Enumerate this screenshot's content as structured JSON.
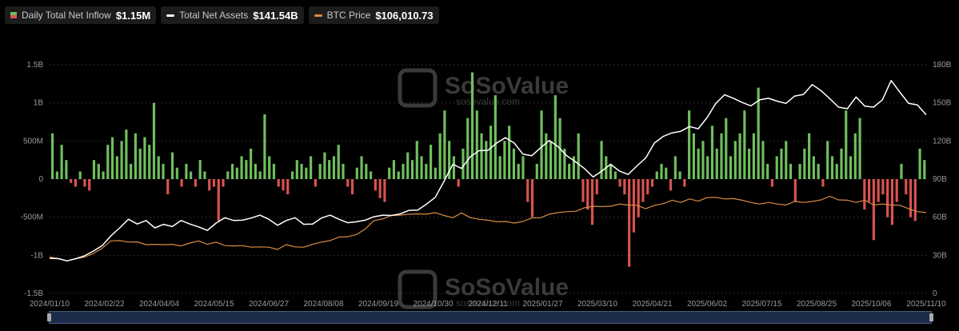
{
  "legend": {
    "inflow_label": "Daily Total Net Inflow",
    "inflow_value": "$1.15M",
    "assets_label": "Total Net Assets",
    "assets_value": "$141.54B",
    "btc_label": "BTC Price",
    "btc_value": "$106,010.73"
  },
  "watermark": {
    "brand": "SoSoValue",
    "url": "sosovalue.com"
  },
  "colors": {
    "inflow_pos": "#6fbf5e",
    "inflow_neg": "#d9534f",
    "assets": "#ffffff",
    "btc": "#d98c3f",
    "grid": "#2a2a2a"
  },
  "chart_data": {
    "type": "bar",
    "x_tick_labels": [
      "2024/01/10",
      "2024/02/22",
      "2024/04/04",
      "2024/05/15",
      "2024/06/27",
      "2024/08/08",
      "2024/09/19",
      "2024/10/30",
      "2024/12/11",
      "2025/01/27",
      "2025/03/10",
      "2025/04/21",
      "2025/06/02",
      "2025/07/15",
      "2025/08/25",
      "2025/10/06",
      "2025/11/10"
    ],
    "y_left_ticks": [
      "1.5B",
      "1B",
      "500M",
      "0",
      "-500M",
      "-1B",
      "-1.5B"
    ],
    "y_right_ticks": [
      "180B",
      "150B",
      "120B",
      "90B",
      "60B",
      "30B",
      "0"
    ],
    "ylim_left": [
      -1.5,
      1.5
    ],
    "ylim_right": [
      0,
      180
    ],
    "grid": true,
    "series": [
      {
        "name": "Daily Total Net Inflow",
        "axis": "left",
        "unit": "B USD",
        "values": [
          0.6,
          0.1,
          0.45,
          0.25,
          -0.05,
          -0.1,
          0.1,
          -0.1,
          -0.15,
          0.25,
          0.2,
          0.1,
          0.45,
          0.55,
          0.3,
          0.5,
          0.65,
          0.2,
          0.6,
          0.4,
          0.55,
          0.45,
          1.0,
          0.3,
          0.2,
          -0.2,
          0.35,
          0.15,
          -0.1,
          0.2,
          0.1,
          -0.1,
          0.25,
          0.1,
          -0.15,
          -0.1,
          -0.55,
          -0.1,
          0.1,
          0.2,
          0.15,
          0.3,
          0.25,
          0.4,
          0.2,
          0.1,
          0.85,
          0.3,
          0.2,
          -0.1,
          -0.15,
          -0.2,
          0.1,
          0.25,
          0.2,
          0.15,
          0.3,
          -0.1,
          0.2,
          0.35,
          0.25,
          0.3,
          0.45,
          0.2,
          -0.1,
          -0.2,
          0.15,
          0.3,
          0.2,
          0.1,
          -0.15,
          -0.25,
          -0.3,
          0.15,
          0.25,
          0.1,
          0.2,
          0.35,
          0.25,
          0.5,
          0.3,
          0.2,
          0.45,
          0.15,
          0.6,
          0.9,
          0.5,
          0.3,
          -0.1,
          0.4,
          0.8,
          1.4,
          0.9,
          0.6,
          0.5,
          0.7,
          1.1,
          0.3,
          0.5,
          0.7,
          0.4,
          0.2,
          0.3,
          -0.3,
          -0.5,
          0.2,
          0.9,
          0.6,
          0.5,
          1.1,
          0.8,
          0.4,
          0.2,
          0.3,
          0.6,
          -0.3,
          -0.4,
          -0.6,
          -0.2,
          0.5,
          0.3,
          0.2,
          0.1,
          -0.1,
          -0.2,
          -1.15,
          -0.7,
          -0.5,
          -0.3,
          -0.2,
          -0.1,
          0.1,
          0.2,
          0.15,
          -0.15,
          0.3,
          0.1,
          -0.1,
          0.9,
          0.6,
          0.4,
          0.5,
          0.3,
          0.7,
          0.4,
          0.6,
          0.8,
          0.3,
          0.5,
          0.6,
          0.9,
          0.4,
          0.6,
          1.2,
          0.5,
          0.2,
          -0.1,
          0.3,
          0.4,
          0.5,
          0.2,
          -0.3,
          0.2,
          0.4,
          0.6,
          0.3,
          0.2,
          -0.1,
          0.5,
          0.3,
          0.2,
          0.4,
          0.9,
          0.3,
          0.6,
          0.8,
          -0.4,
          -0.3,
          -0.8,
          -0.3,
          -0.2,
          -0.5,
          -0.6,
          -0.3,
          0.2,
          -0.2,
          -0.5,
          -0.55,
          0.4,
          0.25
        ],
        "color": "#6fbf5e"
      },
      {
        "name": "Total Net Assets",
        "axis": "right",
        "unit": "B USD",
        "values": [
          28,
          27,
          26,
          27,
          30,
          33,
          38,
          45,
          52,
          58,
          55,
          57,
          52,
          54,
          53,
          57,
          55,
          52,
          50,
          55,
          60,
          57,
          58,
          59,
          62,
          58,
          54,
          57,
          60,
          54,
          55,
          59,
          62,
          58,
          56,
          56,
          58,
          60,
          62,
          61,
          63,
          65,
          66,
          70,
          76,
          88,
          102,
          98,
          108,
          112,
          113,
          118,
          123,
          118,
          110,
          108,
          115,
          120,
          116,
          108,
          104,
          98,
          92,
          96,
          102,
          96,
          94,
          100,
          107,
          118,
          124,
          126,
          128,
          131,
          130,
          138,
          150,
          156,
          154,
          150,
          148,
          152,
          154,
          151,
          150,
          155,
          157,
          164,
          160,
          153,
          147,
          145,
          155,
          147,
          147,
          152,
          168,
          158,
          150,
          148,
          141
        ],
        "color": "#ffffff"
      },
      {
        "name": "BTC Price",
        "axis": "right",
        "unit": "B-scale",
        "values": [
          29,
          27,
          26,
          27,
          29,
          31,
          36,
          41,
          42,
          40,
          41,
          38,
          39,
          38,
          39,
          37,
          40,
          41,
          39,
          40,
          38,
          37,
          38,
          36,
          37,
          36,
          35,
          38,
          37,
          36,
          39,
          40,
          42,
          44,
          45,
          46,
          51,
          57,
          59,
          61,
          62,
          62,
          63,
          62,
          64,
          61,
          60,
          63,
          60,
          58,
          58,
          56,
          57,
          55,
          57,
          59,
          60,
          62,
          64,
          64,
          65,
          67,
          69,
          68,
          69,
          70,
          70,
          69,
          67,
          69,
          71,
          73,
          72,
          74,
          73,
          75,
          76,
          74,
          75,
          73,
          72,
          70,
          72,
          70,
          70,
          72,
          72,
          72,
          74,
          76,
          74,
          73,
          72,
          73,
          70,
          70,
          70,
          69,
          67,
          64,
          64
        ],
        "color": "#d98c3f"
      }
    ]
  }
}
